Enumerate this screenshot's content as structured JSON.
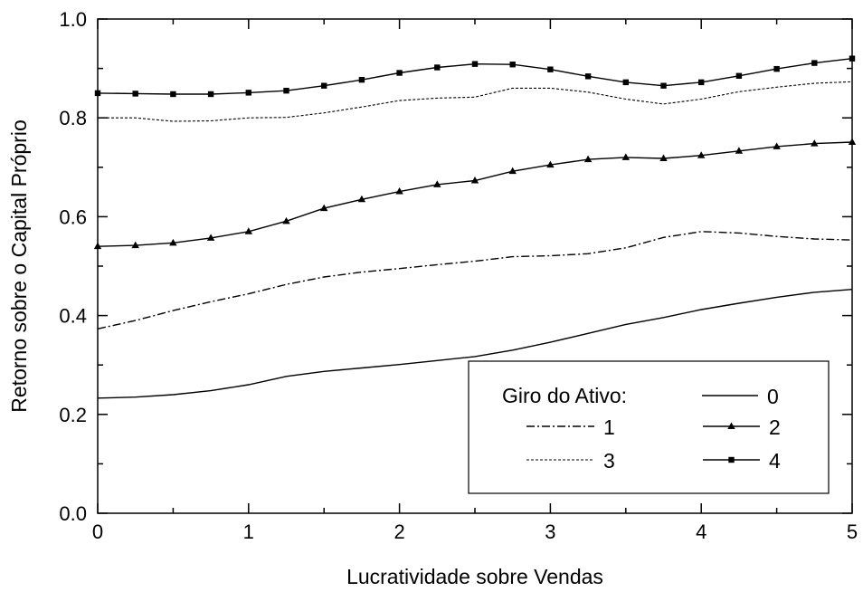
{
  "chart_data": {
    "type": "line",
    "title": "",
    "xlabel": "Lucratividade sobre Vendas",
    "ylabel": "Retorno sobre o Capital Próprio",
    "xlim": [
      0,
      5
    ],
    "ylim": [
      0.0,
      1.0
    ],
    "xticks": [
      "0",
      "1",
      "2",
      "3",
      "4",
      "5"
    ],
    "yticks": [
      "0.0",
      "0.2",
      "0.4",
      "0.6",
      "0.8",
      "1.0"
    ],
    "grid": false,
    "legend": {
      "title": "Giro do Ativo:",
      "placement": "bottom-right"
    },
    "x": [
      0,
      0.25,
      0.5,
      0.75,
      1,
      1.25,
      1.5,
      1.75,
      2,
      2.25,
      2.5,
      2.75,
      3,
      3.25,
      3.5,
      3.75,
      4,
      4.25,
      4.5,
      4.75,
      5
    ],
    "series": [
      {
        "name": "0",
        "line": "solid",
        "marker": "none",
        "values": [
          0.233,
          0.235,
          0.24,
          0.248,
          0.26,
          0.277,
          0.287,
          0.294,
          0.301,
          0.309,
          0.317,
          0.33,
          0.346,
          0.364,
          0.382,
          0.396,
          0.412,
          0.425,
          0.437,
          0.447,
          0.453
        ]
      },
      {
        "name": "1",
        "line": "dashdot",
        "marker": "none",
        "values": [
          0.373,
          0.39,
          0.41,
          0.428,
          0.444,
          0.463,
          0.478,
          0.488,
          0.495,
          0.503,
          0.51,
          0.519,
          0.521,
          0.525,
          0.537,
          0.558,
          0.57,
          0.567,
          0.56,
          0.555,
          0.553
        ]
      },
      {
        "name": "2",
        "line": "solid",
        "marker": "triangle",
        "values": [
          0.54,
          0.542,
          0.547,
          0.557,
          0.57,
          0.591,
          0.617,
          0.635,
          0.651,
          0.665,
          0.673,
          0.692,
          0.705,
          0.716,
          0.72,
          0.718,
          0.724,
          0.733,
          0.742,
          0.748,
          0.751
        ]
      },
      {
        "name": "3",
        "line": "dotted",
        "marker": "none",
        "values": [
          0.8,
          0.8,
          0.793,
          0.794,
          0.8,
          0.801,
          0.81,
          0.822,
          0.835,
          0.84,
          0.842,
          0.86,
          0.86,
          0.852,
          0.838,
          0.828,
          0.838,
          0.853,
          0.862,
          0.87,
          0.873
        ]
      },
      {
        "name": "4",
        "line": "solid",
        "marker": "square",
        "values": [
          0.85,
          0.849,
          0.848,
          0.848,
          0.851,
          0.855,
          0.865,
          0.877,
          0.891,
          0.902,
          0.909,
          0.908,
          0.898,
          0.884,
          0.872,
          0.865,
          0.872,
          0.885,
          0.899,
          0.911,
          0.92
        ]
      }
    ]
  }
}
